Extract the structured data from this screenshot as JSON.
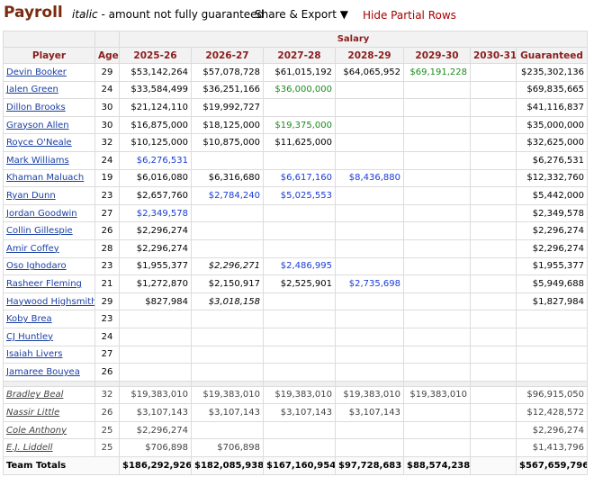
{
  "header": {
    "title": "Payroll",
    "note_italic": "italic",
    "note_rest": " - amount not fully guaranteed",
    "share_label": "Share & Export ▼",
    "hide_label": "Hide Partial Rows"
  },
  "table": {
    "group_header": "Salary",
    "columns": [
      "Player",
      "Age",
      "2025-26",
      "2026-27",
      "2027-28",
      "2028-29",
      "2029-30",
      "2030-31",
      "Guaranteed"
    ],
    "rows": [
      {
        "player": "Devin Booker",
        "age": "29",
        "cells": [
          {
            "v": "$53,142,264"
          },
          {
            "v": "$57,078,728"
          },
          {
            "v": "$61,015,192"
          },
          {
            "v": "$64,065,952"
          },
          {
            "v": "$69,191,228",
            "c": "green"
          },
          {
            "v": ""
          }
        ],
        "guaranteed": "$235,302,136"
      },
      {
        "player": "Jalen Green",
        "age": "24",
        "cells": [
          {
            "v": "$33,584,499"
          },
          {
            "v": "$36,251,166"
          },
          {
            "v": "$36,000,000",
            "c": "green"
          },
          {
            "v": ""
          },
          {
            "v": ""
          },
          {
            "v": ""
          }
        ],
        "guaranteed": "$69,835,665"
      },
      {
        "player": "Dillon Brooks",
        "age": "30",
        "cells": [
          {
            "v": "$21,124,110"
          },
          {
            "v": "$19,992,727"
          },
          {
            "v": ""
          },
          {
            "v": ""
          },
          {
            "v": ""
          },
          {
            "v": ""
          }
        ],
        "guaranteed": "$41,116,837"
      },
      {
        "player": "Grayson Allen",
        "age": "30",
        "cells": [
          {
            "v": "$16,875,000"
          },
          {
            "v": "$18,125,000"
          },
          {
            "v": "$19,375,000",
            "c": "green"
          },
          {
            "v": ""
          },
          {
            "v": ""
          },
          {
            "v": ""
          }
        ],
        "guaranteed": "$35,000,000"
      },
      {
        "player": "Royce O'Neale",
        "age": "32",
        "cells": [
          {
            "v": "$10,125,000"
          },
          {
            "v": "$10,875,000"
          },
          {
            "v": "$11,625,000"
          },
          {
            "v": ""
          },
          {
            "v": ""
          },
          {
            "v": ""
          }
        ],
        "guaranteed": "$32,625,000"
      },
      {
        "player": "Mark Williams",
        "age": "24",
        "cells": [
          {
            "v": "$6,276,531",
            "c": "blue"
          },
          {
            "v": ""
          },
          {
            "v": ""
          },
          {
            "v": ""
          },
          {
            "v": ""
          },
          {
            "v": ""
          }
        ],
        "guaranteed": "$6,276,531"
      },
      {
        "player": "Khaman Maluach",
        "age": "19",
        "cells": [
          {
            "v": "$6,016,080"
          },
          {
            "v": "$6,316,680"
          },
          {
            "v": "$6,617,160",
            "c": "blue"
          },
          {
            "v": "$8,436,880",
            "c": "blue"
          },
          {
            "v": ""
          },
          {
            "v": ""
          }
        ],
        "guaranteed": "$12,332,760"
      },
      {
        "player": "Ryan Dunn",
        "age": "23",
        "cells": [
          {
            "v": "$2,657,760"
          },
          {
            "v": "$2,784,240",
            "c": "blue"
          },
          {
            "v": "$5,025,553",
            "c": "blue"
          },
          {
            "v": ""
          },
          {
            "v": ""
          },
          {
            "v": ""
          }
        ],
        "guaranteed": "$5,442,000"
      },
      {
        "player": "Jordan Goodwin",
        "age": "27",
        "cells": [
          {
            "v": "$2,349,578",
            "c": "blue"
          },
          {
            "v": ""
          },
          {
            "v": ""
          },
          {
            "v": ""
          },
          {
            "v": ""
          },
          {
            "v": ""
          }
        ],
        "guaranteed": "$2,349,578"
      },
      {
        "player": "Collin Gillespie",
        "age": "26",
        "cells": [
          {
            "v": "$2,296,274"
          },
          {
            "v": ""
          },
          {
            "v": ""
          },
          {
            "v": ""
          },
          {
            "v": ""
          },
          {
            "v": ""
          }
        ],
        "guaranteed": "$2,296,274"
      },
      {
        "player": "Amir Coffey",
        "age": "28",
        "cells": [
          {
            "v": "$2,296,274"
          },
          {
            "v": ""
          },
          {
            "v": ""
          },
          {
            "v": ""
          },
          {
            "v": ""
          },
          {
            "v": ""
          }
        ],
        "guaranteed": "$2,296,274"
      },
      {
        "player": "Oso Ighodaro",
        "age": "23",
        "cells": [
          {
            "v": "$1,955,377"
          },
          {
            "v": "$2,296,271",
            "c": "it"
          },
          {
            "v": "$2,486,995",
            "c": "blue"
          },
          {
            "v": ""
          },
          {
            "v": ""
          },
          {
            "v": ""
          }
        ],
        "guaranteed": "$1,955,377"
      },
      {
        "player": "Rasheer Fleming",
        "age": "21",
        "cells": [
          {
            "v": "$1,272,870"
          },
          {
            "v": "$2,150,917"
          },
          {
            "v": "$2,525,901"
          },
          {
            "v": "$2,735,698",
            "c": "blue"
          },
          {
            "v": ""
          },
          {
            "v": ""
          }
        ],
        "guaranteed": "$5,949,688"
      },
      {
        "player": "Haywood Highsmith",
        "age": "29",
        "cells": [
          {
            "v": "$827,984"
          },
          {
            "v": "$3,018,158",
            "c": "it"
          },
          {
            "v": ""
          },
          {
            "v": ""
          },
          {
            "v": ""
          },
          {
            "v": ""
          }
        ],
        "guaranteed": "$1,827,984"
      },
      {
        "player": "Koby Brea",
        "age": "23",
        "cells": [
          {
            "v": ""
          },
          {
            "v": ""
          },
          {
            "v": ""
          },
          {
            "v": ""
          },
          {
            "v": ""
          },
          {
            "v": ""
          }
        ],
        "guaranteed": ""
      },
      {
        "player": "CJ Huntley",
        "age": "24",
        "cells": [
          {
            "v": ""
          },
          {
            "v": ""
          },
          {
            "v": ""
          },
          {
            "v": ""
          },
          {
            "v": ""
          },
          {
            "v": ""
          }
        ],
        "guaranteed": ""
      },
      {
        "player": "Isaiah Livers",
        "age": "27",
        "cells": [
          {
            "v": ""
          },
          {
            "v": ""
          },
          {
            "v": ""
          },
          {
            "v": ""
          },
          {
            "v": ""
          },
          {
            "v": ""
          }
        ],
        "guaranteed": ""
      },
      {
        "player": "Jamaree Bouyea",
        "age": "26",
        "cells": [
          {
            "v": ""
          },
          {
            "v": ""
          },
          {
            "v": ""
          },
          {
            "v": ""
          },
          {
            "v": ""
          },
          {
            "v": ""
          }
        ],
        "guaranteed": ""
      }
    ],
    "dead_rows": [
      {
        "player": "Bradley Beal",
        "age": "32",
        "cells": [
          "$19,383,010",
          "$19,383,010",
          "$19,383,010",
          "$19,383,010",
          "$19,383,010",
          ""
        ],
        "guaranteed": "$96,915,050"
      },
      {
        "player": "Nassir Little",
        "age": "26",
        "cells": [
          "$3,107,143",
          "$3,107,143",
          "$3,107,143",
          "$3,107,143",
          "",
          ""
        ],
        "guaranteed": "$12,428,572"
      },
      {
        "player": "Cole Anthony",
        "age": "25",
        "cells": [
          "$2,296,274",
          "",
          "",
          "",
          "",
          ""
        ],
        "guaranteed": "$2,296,274"
      },
      {
        "player": "E.J. Liddell",
        "age": "25",
        "cells": [
          "$706,898",
          "$706,898",
          "",
          "",
          "",
          ""
        ],
        "guaranteed": "$1,413,796"
      }
    ],
    "totals": {
      "label": "Team Totals",
      "cells": [
        "$186,292,926",
        "$182,085,938",
        "$167,160,954",
        "$97,728,683",
        "$88,574,238",
        ""
      ],
      "guaranteed": "$567,659,796"
    }
  }
}
